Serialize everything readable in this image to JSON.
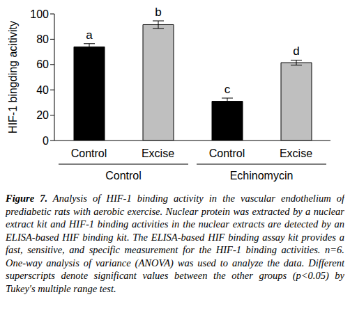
{
  "chart_data": {
    "type": "bar",
    "y_label": "HIF-1 bingding acitivity",
    "categories": [
      "Control",
      "Excise",
      "Control",
      "Excise"
    ],
    "group_labels": [
      "Control",
      "Control",
      "Echinomycin",
      "Echinomycin"
    ],
    "values": [
      74,
      91.5,
      31,
      61.5
    ],
    "errors": [
      2.5,
      3,
      2.5,
      2
    ],
    "annotations": [
      "a",
      "b",
      "c",
      "d"
    ],
    "colors": [
      "#000000",
      "#bfbfbf",
      "#000000",
      "#bfbfbf"
    ],
    "ylim": [
      0,
      100
    ],
    "yticks": [
      0,
      20,
      40,
      60,
      80,
      100
    ],
    "grid": false,
    "caption_label": "Figure 7.",
    "caption": "Analysis of HIF-1 binding activity in the vascular endothelium of prediabetic rats with aerobic exercise. Nuclear protein was extracted by a nuclear extract kit and HIF-1 binding activities in the nuclear extracts are detected by an ELISA-based HIF binding kit. The ELISA-based HIF binding assay kit provides a fast, sensitive, and specific measurement for the HIF-1 binding activities. n=6. One-way analysis of variance (ANOVA) was used to analyze the data. Different superscripts denote significant values between the other groups (p<0.05) by Tukey's multiple range test."
  }
}
